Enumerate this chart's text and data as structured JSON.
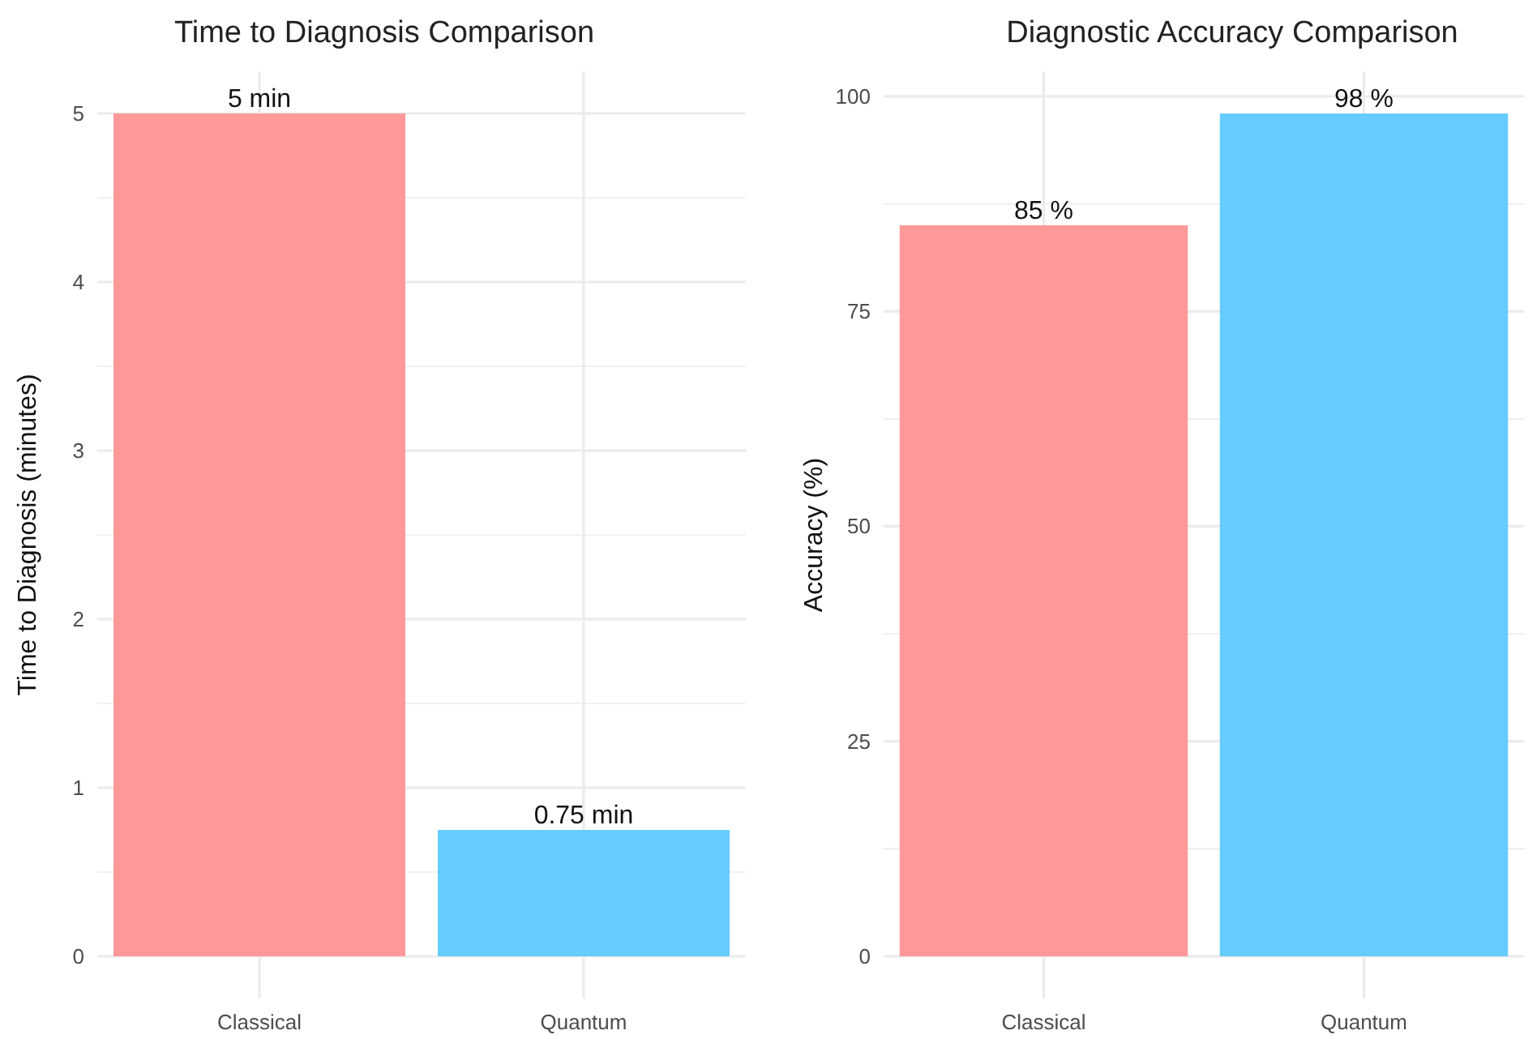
{
  "chart_data": [
    {
      "type": "bar",
      "title": "Time to Diagnosis Comparison",
      "ylabel": "Time to Diagnosis (minutes)",
      "categories": [
        "Classical",
        "Quantum"
      ],
      "values": [
        5,
        0.75
      ],
      "colors": [
        "#ff9999",
        "#66ccff"
      ],
      "value_labels": [
        "5 min",
        "0.75 min"
      ],
      "ylim": [
        -0.25,
        5.25
      ],
      "yticks": [
        0,
        {
          "value": 0.5,
          "label": null
        },
        1,
        {
          "value": 1.5,
          "label": null
        },
        2,
        {
          "value": 2.5,
          "label": null
        },
        3,
        {
          "value": 3.5,
          "label": null
        },
        4,
        {
          "value": 4.5,
          "label": null
        },
        5
      ],
      "grid": true
    },
    {
      "type": "bar",
      "title": "Diagnostic Accuracy Comparison",
      "ylabel": "Accuracy (%)",
      "categories": [
        "Classical",
        "Quantum"
      ],
      "values": [
        85,
        98
      ],
      "colors": [
        "#ff9999",
        "#66ccff"
      ],
      "value_labels": [
        "85 %",
        "98 %"
      ],
      "ylim": [
        -4.9,
        102.9
      ],
      "yticks": [
        0,
        {
          "value": 12.5,
          "label": null
        },
        25,
        {
          "value": 37.5,
          "label": null
        },
        50,
        {
          "value": 62.5,
          "label": null
        },
        75,
        {
          "value": 87.5,
          "label": null
        },
        100
      ],
      "grid": true
    }
  ]
}
